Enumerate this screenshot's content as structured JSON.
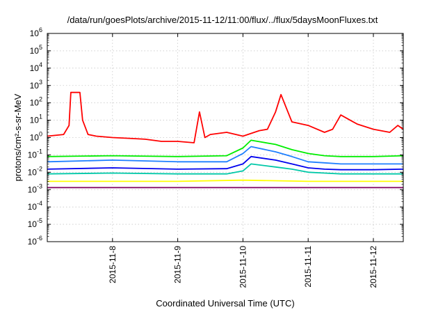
{
  "chart_data": {
    "type": "line",
    "title": "/data/run/goesPlots/archive/2015-11-12/11:00/flux/../flux/5daysMoonFluxes.txt",
    "xlabel": "Coordinated Universal Time (UTC)",
    "ylabel": "protons/cm²-s-sr-MeV",
    "y_scale": "log",
    "ylim": [
      1e-06,
      1000000.0
    ],
    "xlim": [
      "2015-11-07T00:00",
      "2015-11-12T11:00"
    ],
    "x_ticks": [
      "2015-11-8",
      "2015-11-9",
      "2015-11-10",
      "2015-11-11",
      "2015-11-12"
    ],
    "y_tick_base": "10",
    "y_tick_exponents": [
      "-6",
      "-5",
      "-4",
      "-3",
      "-2",
      "-1",
      "0",
      "1",
      "2",
      "3",
      "4",
      "5",
      "6"
    ],
    "grid": true,
    "legend": "none",
    "series": [
      {
        "color": "#ff0000",
        "x": [
          "2015-11-07T00:00",
          "2015-11-07T06:00",
          "2015-11-07T08:00",
          "2015-11-07T08:40",
          "2015-11-07T09:10",
          "2015-11-07T12:00",
          "2015-11-07T13:00",
          "2015-11-07T15:00",
          "2015-11-07T18:00",
          "2015-11-08T00:00",
          "2015-11-08T06:00",
          "2015-11-08T12:00",
          "2015-11-08T18:00",
          "2015-11-09T00:00",
          "2015-11-09T06:00",
          "2015-11-09T08:00",
          "2015-11-09T10:00",
          "2015-11-09T12:00",
          "2015-11-09T18:00",
          "2015-11-10T00:00",
          "2015-11-10T06:00",
          "2015-11-10T09:00",
          "2015-11-10T12:00",
          "2015-11-10T14:00",
          "2015-11-10T18:00",
          "2015-11-11T00:00",
          "2015-11-11T06:00",
          "2015-11-11T09:00",
          "2015-11-11T12:00",
          "2015-11-11T18:00",
          "2015-11-12T00:00",
          "2015-11-12T06:00",
          "2015-11-12T09:00",
          "2015-11-12T11:00"
        ],
        "y": [
          1.2,
          1.5,
          5,
          400,
          400,
          400,
          10,
          1.5,
          1.2,
          1.0,
          0.9,
          0.8,
          0.6,
          0.6,
          0.5,
          30,
          1.0,
          1.5,
          2.0,
          1.2,
          2.5,
          3,
          30,
          300,
          8,
          5,
          2,
          3,
          20,
          6,
          3,
          2,
          5,
          3
        ]
      },
      {
        "color": "#00ee00",
        "x": [
          "2015-11-07T00:00",
          "2015-11-08T00:00",
          "2015-11-09T00:00",
          "2015-11-09T18:00",
          "2015-11-10T00:00",
          "2015-11-10T03:00",
          "2015-11-10T12:00",
          "2015-11-10T18:00",
          "2015-11-11T00:00",
          "2015-11-11T06:00",
          "2015-11-11T12:00",
          "2015-11-12T00:00",
          "2015-11-12T11:00"
        ],
        "y": [
          0.08,
          0.09,
          0.08,
          0.09,
          0.25,
          0.7,
          0.4,
          0.2,
          0.12,
          0.09,
          0.08,
          0.08,
          0.09
        ]
      },
      {
        "color": "#1e7fff",
        "x": [
          "2015-11-07T00:00",
          "2015-11-08T00:00",
          "2015-11-09T00:00",
          "2015-11-09T18:00",
          "2015-11-10T00:00",
          "2015-11-10T03:00",
          "2015-11-10T12:00",
          "2015-11-10T18:00",
          "2015-11-11T00:00",
          "2015-11-11T06:00",
          "2015-11-11T12:00",
          "2015-11-12T00:00",
          "2015-11-12T11:00"
        ],
        "y": [
          0.04,
          0.05,
          0.04,
          0.04,
          0.12,
          0.3,
          0.15,
          0.08,
          0.04,
          0.035,
          0.03,
          0.03,
          0.03
        ]
      },
      {
        "color": "#0000ee",
        "x": [
          "2015-11-07T00:00",
          "2015-11-08T00:00",
          "2015-11-09T00:00",
          "2015-11-09T18:00",
          "2015-11-10T00:00",
          "2015-11-10T03:00",
          "2015-11-10T12:00",
          "2015-11-10T18:00",
          "2015-11-11T00:00",
          "2015-11-11T06:00",
          "2015-11-11T12:00",
          "2015-11-12T00:00",
          "2015-11-12T11:00"
        ],
        "y": [
          0.015,
          0.018,
          0.015,
          0.016,
          0.03,
          0.08,
          0.05,
          0.03,
          0.018,
          0.015,
          0.014,
          0.014,
          0.015
        ]
      },
      {
        "color": "#00c8a8",
        "x": [
          "2015-11-07T00:00",
          "2015-11-08T00:00",
          "2015-11-09T00:00",
          "2015-11-09T18:00",
          "2015-11-10T00:00",
          "2015-11-10T03:00",
          "2015-11-10T12:00",
          "2015-11-10T18:00",
          "2015-11-11T00:00",
          "2015-11-11T06:00",
          "2015-11-11T12:00",
          "2015-11-12T00:00",
          "2015-11-12T11:00"
        ],
        "y": [
          0.008,
          0.009,
          0.008,
          0.008,
          0.012,
          0.03,
          0.02,
          0.015,
          0.01,
          0.009,
          0.008,
          0.008,
          0.008
        ]
      },
      {
        "color": "#ffff00",
        "x": [
          "2015-11-07T00:00",
          "2015-11-08T00:00",
          "2015-11-09T00:00",
          "2015-11-10T00:00",
          "2015-11-11T00:00",
          "2015-11-12T00:00",
          "2015-11-12T11:00"
        ],
        "y": [
          0.003,
          0.003,
          0.003,
          0.0035,
          0.003,
          0.003,
          0.003
        ]
      },
      {
        "color": "#800060",
        "x": [
          "2015-11-07T00:00",
          "2015-11-08T00:00",
          "2015-11-09T00:00",
          "2015-11-10T00:00",
          "2015-11-11T00:00",
          "2015-11-12T00:00",
          "2015-11-12T11:00"
        ],
        "y": [
          0.0013,
          0.0013,
          0.0013,
          0.0013,
          0.0013,
          0.0013,
          0.0013
        ]
      }
    ]
  }
}
